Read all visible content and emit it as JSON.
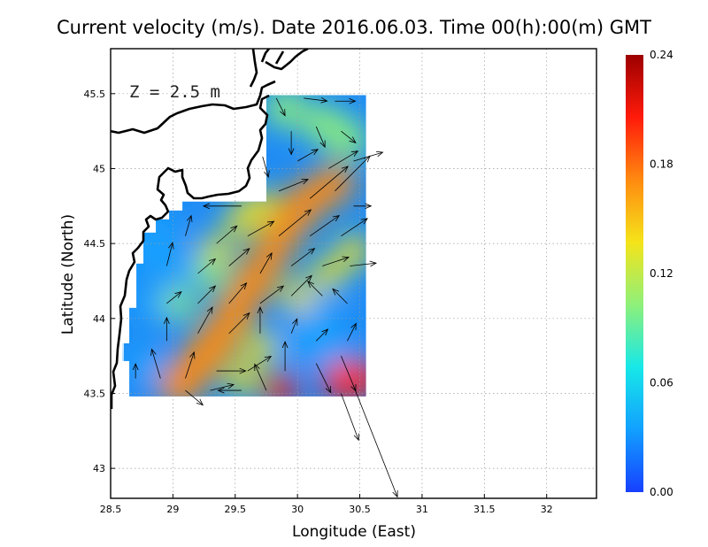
{
  "title": "Current velocity (m/s). Date 2016.06.03. Time 00(h):00(m) GMT",
  "depth_label": "Z = 2.5 m",
  "xaxis": {
    "label": "Longitude (East)",
    "range": [
      28.5,
      32.4
    ],
    "ticks": [
      "28.5",
      "29",
      "29.5",
      "30",
      "30.5",
      "31",
      "31.5",
      "32"
    ]
  },
  "yaxis": {
    "label": "Latitude (North)",
    "range": [
      42.8,
      45.8
    ],
    "ticks": [
      "43",
      "43.5",
      "44",
      "44.5",
      "45",
      "45.5"
    ]
  },
  "colorbar": {
    "range": [
      0.0,
      0.24
    ],
    "ticks": [
      "0.00",
      "0.06",
      "0.12",
      "0.18",
      "0.24"
    ],
    "colors": [
      "#1740ff",
      "#12a0ff",
      "#17e8e8",
      "#8ef07a",
      "#f5e41a",
      "#ff8a10",
      "#ff1a0a",
      "#9c0000"
    ]
  },
  "grid": "dotted",
  "chart_data": {
    "type": "heatmap",
    "title": "Current velocity (m/s). Date 2016.06.03. Time 00(h):00(m) GMT",
    "xlabel": "Longitude (East)",
    "ylabel": "Latitude (North)",
    "xlim": [
      28.5,
      32.4
    ],
    "ylim": [
      42.8,
      45.8
    ],
    "domain": {
      "lon": [
        28.65,
        30.55
      ],
      "lat": [
        43.48,
        45.49
      ]
    },
    "colorbar_range": [
      0.0,
      0.24
    ],
    "high_speed_areas": [
      {
        "lon": 30.4,
        "lat": 43.6,
        "speed": 0.22
      },
      {
        "lon": 29.2,
        "lat": 43.65,
        "speed": 0.17
      },
      {
        "lon": 29.4,
        "lat": 43.95,
        "speed": 0.16
      },
      {
        "lon": 29.85,
        "lat": 44.6,
        "speed": 0.17
      },
      {
        "lon": 30.0,
        "lat": 44.8,
        "speed": 0.18
      },
      {
        "lon": 29.9,
        "lat": 43.55,
        "speed": 0.2
      }
    ],
    "vectors": [
      {
        "lon": 29.83,
        "lat": 45.47,
        "u": 0.03,
        "v": -0.06
      },
      {
        "lon": 30.05,
        "lat": 45.47,
        "u": 0.08,
        "v": -0.01
      },
      {
        "lon": 30.3,
        "lat": 45.45,
        "u": 0.07,
        "v": 0.0
      },
      {
        "lon": 29.95,
        "lat": 45.25,
        "u": 0.0,
        "v": -0.08
      },
      {
        "lon": 30.15,
        "lat": 45.28,
        "u": 0.03,
        "v": -0.07
      },
      {
        "lon": 30.35,
        "lat": 45.25,
        "u": 0.05,
        "v": -0.04
      },
      {
        "lon": 29.72,
        "lat": 45.08,
        "u": 0.02,
        "v": -0.07
      },
      {
        "lon": 30.0,
        "lat": 45.05,
        "u": 0.07,
        "v": 0.04
      },
      {
        "lon": 30.25,
        "lat": 45.0,
        "u": 0.1,
        "v": 0.06
      },
      {
        "lon": 30.45,
        "lat": 45.05,
        "u": 0.1,
        "v": 0.03
      },
      {
        "lon": 29.55,
        "lat": 44.75,
        "u": -0.13,
        "v": 0.0
      },
      {
        "lon": 29.85,
        "lat": 44.85,
        "u": 0.1,
        "v": 0.04
      },
      {
        "lon": 30.1,
        "lat": 44.8,
        "u": 0.13,
        "v": 0.11
      },
      {
        "lon": 30.3,
        "lat": 44.85,
        "u": 0.12,
        "v": 0.12
      },
      {
        "lon": 30.45,
        "lat": 44.75,
        "u": 0.06,
        "v": 0.0
      },
      {
        "lon": 29.1,
        "lat": 44.55,
        "u": 0.02,
        "v": 0.07
      },
      {
        "lon": 29.35,
        "lat": 44.5,
        "u": 0.07,
        "v": 0.06
      },
      {
        "lon": 29.6,
        "lat": 44.55,
        "u": 0.09,
        "v": 0.05
      },
      {
        "lon": 29.85,
        "lat": 44.55,
        "u": 0.11,
        "v": 0.09
      },
      {
        "lon": 30.1,
        "lat": 44.55,
        "u": 0.1,
        "v": 0.07
      },
      {
        "lon": 30.35,
        "lat": 44.55,
        "u": 0.09,
        "v": 0.06
      },
      {
        "lon": 28.95,
        "lat": 44.35,
        "u": 0.02,
        "v": 0.08
      },
      {
        "lon": 29.2,
        "lat": 44.3,
        "u": 0.06,
        "v": 0.05
      },
      {
        "lon": 29.45,
        "lat": 44.35,
        "u": 0.07,
        "v": 0.06
      },
      {
        "lon": 29.7,
        "lat": 44.3,
        "u": 0.04,
        "v": 0.07
      },
      {
        "lon": 29.95,
        "lat": 44.35,
        "u": 0.08,
        "v": 0.06
      },
      {
        "lon": 30.2,
        "lat": 44.35,
        "u": 0.09,
        "v": 0.03
      },
      {
        "lon": 30.42,
        "lat": 44.35,
        "u": 0.09,
        "v": 0.01
      },
      {
        "lon": 28.95,
        "lat": 44.1,
        "u": 0.05,
        "v": 0.04
      },
      {
        "lon": 29.2,
        "lat": 44.1,
        "u": 0.06,
        "v": 0.06
      },
      {
        "lon": 29.45,
        "lat": 44.1,
        "u": 0.06,
        "v": 0.07
      },
      {
        "lon": 29.7,
        "lat": 44.1,
        "u": 0.08,
        "v": 0.06
      },
      {
        "lon": 29.95,
        "lat": 44.15,
        "u": 0.07,
        "v": 0.07
      },
      {
        "lon": 30.2,
        "lat": 44.15,
        "u": -0.05,
        "v": 0.05
      },
      {
        "lon": 30.4,
        "lat": 44.1,
        "u": -0.05,
        "v": 0.05
      },
      {
        "lon": 28.95,
        "lat": 43.85,
        "u": 0.0,
        "v": 0.08
      },
      {
        "lon": 29.2,
        "lat": 43.9,
        "u": 0.05,
        "v": 0.09
      },
      {
        "lon": 29.45,
        "lat": 43.9,
        "u": 0.07,
        "v": 0.07
      },
      {
        "lon": 29.7,
        "lat": 43.9,
        "u": 0.0,
        "v": 0.09
      },
      {
        "lon": 29.95,
        "lat": 43.9,
        "u": 0.02,
        "v": 0.05
      },
      {
        "lon": 30.15,
        "lat": 43.85,
        "u": 0.04,
        "v": 0.04
      },
      {
        "lon": 30.4,
        "lat": 43.85,
        "u": 0.03,
        "v": 0.06
      },
      {
        "lon": 28.7,
        "lat": 43.6,
        "u": 0.0,
        "v": 0.05
      },
      {
        "lon": 28.9,
        "lat": 43.6,
        "u": -0.03,
        "v": 0.1
      },
      {
        "lon": 29.1,
        "lat": 43.6,
        "u": 0.03,
        "v": 0.09
      },
      {
        "lon": 29.35,
        "lat": 43.65,
        "u": 0.1,
        "v": 0.0
      },
      {
        "lon": 29.6,
        "lat": 43.65,
        "u": 0.08,
        "v": 0.05
      },
      {
        "lon": 29.9,
        "lat": 43.65,
        "u": 0.0,
        "v": 0.1
      },
      {
        "lon": 30.15,
        "lat": 43.7,
        "u": 0.05,
        "v": -0.1
      },
      {
        "lon": 30.35,
        "lat": 43.75,
        "u": 0.05,
        "v": -0.12
      },
      {
        "lon": 29.1,
        "lat": 43.52,
        "u": 0.06,
        "v": -0.05
      },
      {
        "lon": 29.3,
        "lat": 43.52,
        "u": 0.08,
        "v": 0.02
      },
      {
        "lon": 29.55,
        "lat": 43.52,
        "u": -0.08,
        "v": 0.0
      },
      {
        "lon": 29.75,
        "lat": 43.52,
        "u": -0.04,
        "v": 0.09
      },
      {
        "lon": 30.35,
        "lat": 43.5,
        "u": 0.06,
        "v": -0.16
      },
      {
        "lon": 30.45,
        "lat": 43.55,
        "u": 0.15,
        "v": -0.38
      }
    ]
  }
}
